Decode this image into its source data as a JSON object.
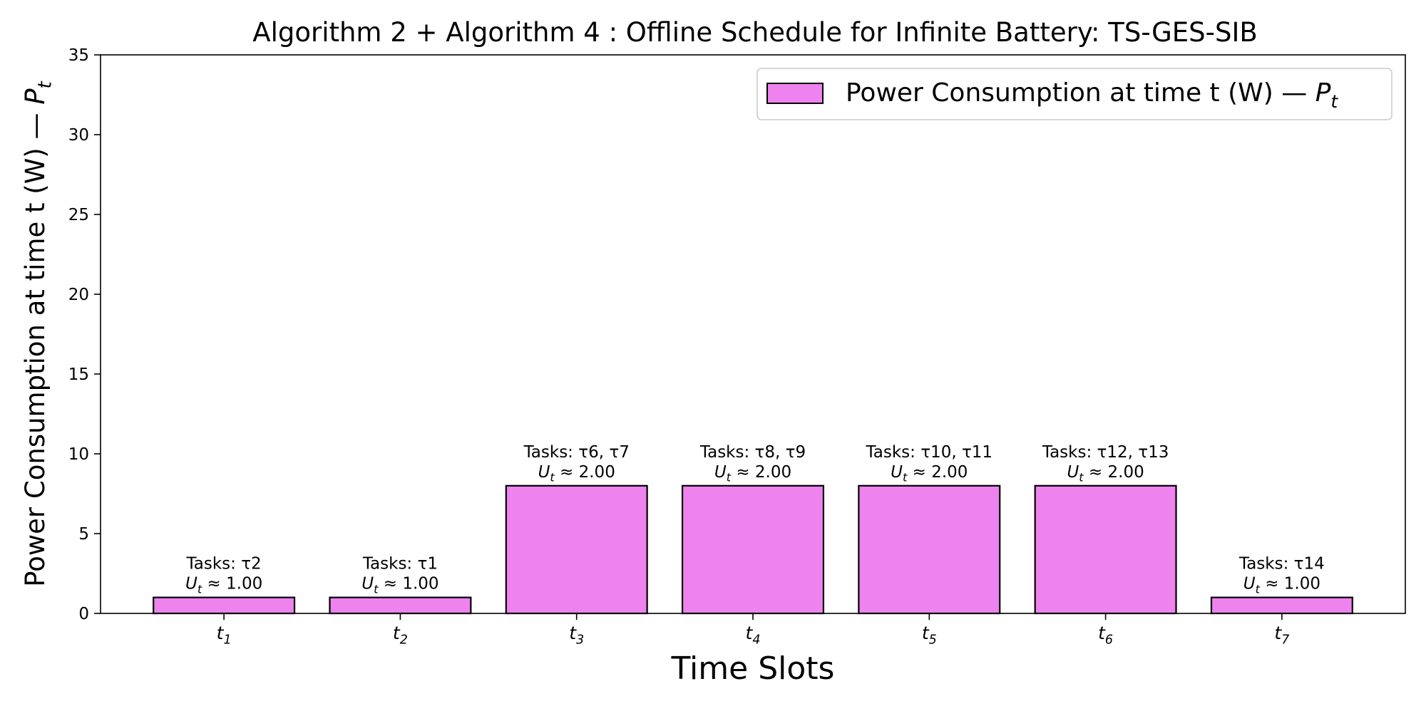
{
  "chart_data": {
    "type": "bar",
    "title": "Algorithm 2 + Algorithm 4 : Offline Schedule for Infinite Battery: TS-GES-SIB",
    "xlabel": "Time Slots",
    "ylabel": {
      "text": "Power Consumption at time t (W) — ",
      "sym": "P",
      "sub": "t"
    },
    "legend": {
      "position": "top-right",
      "text": "Power Consumption at time t (W) — ",
      "sym": "P",
      "sub": "t"
    },
    "ylim": [
      0,
      35
    ],
    "yticks": [
      0,
      5,
      10,
      15,
      20,
      25,
      30,
      35
    ],
    "grid": false,
    "bar_color": "#ee82ee",
    "edge_color": "#000000",
    "categories": [
      {
        "sym": "t",
        "sub": "1"
      },
      {
        "sym": "t",
        "sub": "2"
      },
      {
        "sym": "t",
        "sub": "3"
      },
      {
        "sym": "t",
        "sub": "4"
      },
      {
        "sym": "t",
        "sub": "5"
      },
      {
        "sym": "t",
        "sub": "6"
      },
      {
        "sym": "t",
        "sub": "7"
      }
    ],
    "series": [
      {
        "values": [
          1,
          1,
          8,
          8,
          8,
          8,
          1
        ]
      }
    ],
    "annotations": [
      {
        "tasks": "Tasks: τ2",
        "u_sym": "U",
        "u_sub": "t",
        "u_rest": " ≈ 1.00"
      },
      {
        "tasks": "Tasks: τ1",
        "u_sym": "U",
        "u_sub": "t",
        "u_rest": " ≈ 1.00"
      },
      {
        "tasks": "Tasks: τ6, τ7",
        "u_sym": "U",
        "u_sub": "t",
        "u_rest": " ≈ 2.00"
      },
      {
        "tasks": "Tasks: τ8, τ9",
        "u_sym": "U",
        "u_sub": "t",
        "u_rest": " ≈ 2.00"
      },
      {
        "tasks": "Tasks: τ10, τ11",
        "u_sym": "U",
        "u_sub": "t",
        "u_rest": " ≈ 2.00"
      },
      {
        "tasks": "Tasks: τ12, τ13",
        "u_sym": "U",
        "u_sub": "t",
        "u_rest": " ≈ 2.00"
      },
      {
        "tasks": "Tasks: τ14",
        "u_sym": "U",
        "u_sub": "t",
        "u_rest": " ≈ 1.00"
      }
    ]
  }
}
